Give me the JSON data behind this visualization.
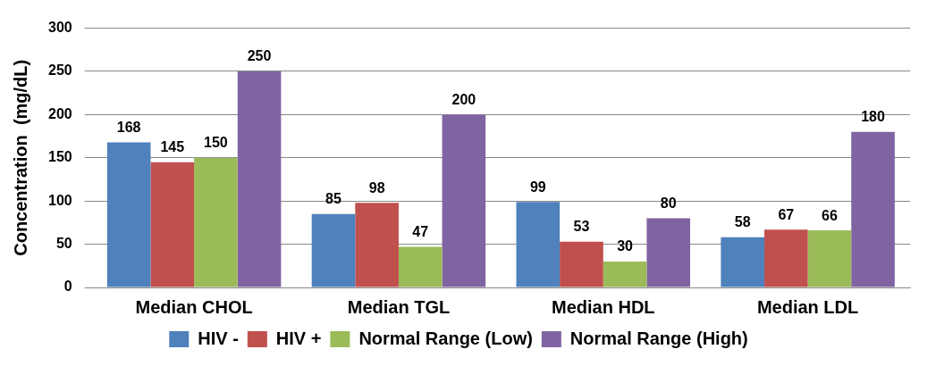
{
  "chart_data": {
    "type": "bar",
    "ylabel": "Concentration  (mg/dL)",
    "categories": [
      "Median CHOL",
      "Median TGL",
      "Median HDL",
      "Median LDL"
    ],
    "series": [
      {
        "name": "HIV -",
        "color": "#4f81bd",
        "values": [
          168,
          85,
          99,
          58
        ]
      },
      {
        "name": "HIV +",
        "color": "#c0504d",
        "values": [
          145,
          98,
          53,
          67
        ]
      },
      {
        "name": "Normal Range (Low)",
        "color": "#9bbb59",
        "values": [
          150,
          47,
          30,
          66
        ]
      },
      {
        "name": "Normal Range (High)",
        "color": "#8064a2",
        "values": [
          250,
          200,
          80,
          180
        ]
      }
    ],
    "ylim": [
      0,
      300
    ],
    "yticks": [
      0,
      50,
      100,
      150,
      200,
      250,
      300
    ],
    "grid": "y",
    "legend": "bottom",
    "data_labels": true
  }
}
